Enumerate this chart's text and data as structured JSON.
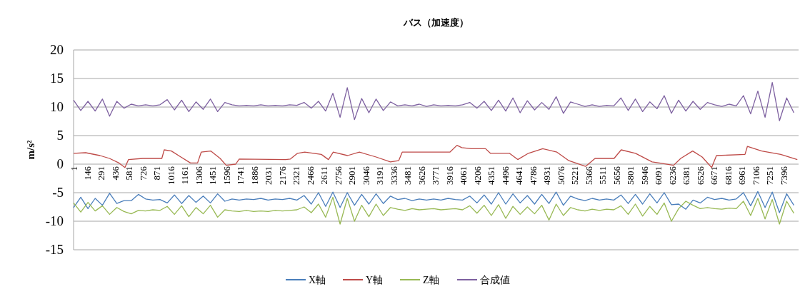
{
  "chart_data": {
    "type": "line",
    "title": "バス（加速度）",
    "ylabel": "m/s²",
    "grid": "y",
    "legend": "bottom",
    "xlim": [
      1,
      7550
    ],
    "ylim": [
      -15,
      20
    ],
    "yticks": [
      -15,
      -10,
      -5,
      0,
      5,
      10,
      15,
      20
    ],
    "xticks": [
      1,
      146,
      291,
      436,
      581,
      726,
      871,
      1016,
      1161,
      1306,
      1451,
      1596,
      1741,
      1886,
      2031,
      2176,
      2321,
      2466,
      2611,
      2756,
      2901,
      3046,
      3191,
      3336,
      3481,
      3626,
      3771,
      3916,
      4061,
      4206,
      4351,
      4496,
      4641,
      4786,
      4931,
      5076,
      5221,
      5366,
      5511,
      5656,
      5801,
      5946,
      6091,
      6236,
      6381,
      6526,
      6671,
      6816,
      6961,
      7106,
      7251,
      7396
    ],
    "x": [
      1,
      76,
      151,
      226,
      301,
      376,
      451,
      526,
      601,
      676,
      751,
      826,
      901,
      976,
      1051,
      1126,
      1201,
      1276,
      1351,
      1426,
      1501,
      1576,
      1651,
      1726,
      1801,
      1876,
      1951,
      2026,
      2101,
      2176,
      2251,
      2326,
      2401,
      2476,
      2551,
      2626,
      2701,
      2776,
      2851,
      2926,
      3001,
      3076,
      3151,
      3226,
      3301,
      3376,
      3451,
      3526,
      3601,
      3676,
      3751,
      3826,
      3901,
      3976,
      4051,
      4126,
      4201,
      4276,
      4351,
      4426,
      4501,
      4576,
      4651,
      4726,
      4801,
      4876,
      4951,
      5026,
      5101,
      5176,
      5251,
      5326,
      5401,
      5476,
      5551,
      5626,
      5701,
      5776,
      5851,
      5926,
      6001,
      6076,
      6151,
      6226,
      6301,
      6376,
      6451,
      6526,
      6601,
      6676,
      6751,
      6826,
      6901,
      6976,
      7051,
      7126,
      7201,
      7276,
      7351,
      7426,
      7501
    ],
    "series": [
      {
        "name": "X軸",
        "color": "#4a7ebb",
        "values": [
          -7.6,
          -5.8,
          -7.8,
          -6.0,
          -7.2,
          -5.1,
          -6.9,
          -6.4,
          -6.4,
          -5.3,
          -6.1,
          -6.3,
          -6.2,
          -6.8,
          -5.4,
          -6.9,
          -5.5,
          -6.7,
          -5.6,
          -6.8,
          -5.2,
          -6.5,
          -6.1,
          -6.3,
          -6.1,
          -6.2,
          -6.0,
          -6.3,
          -6.1,
          -6.2,
          -6.0,
          -6.3,
          -5.5,
          -7.0,
          -5.0,
          -7.4,
          -4.9,
          -7.6,
          -5.0,
          -7.2,
          -5.3,
          -7.0,
          -5.2,
          -6.9,
          -5.6,
          -6.2,
          -6.0,
          -6.4,
          -6.1,
          -6.3,
          -6.1,
          -6.3,
          -6.0,
          -6.2,
          -6.3,
          -5.6,
          -6.8,
          -5.4,
          -7.0,
          -5.0,
          -7.0,
          -5.2,
          -6.8,
          -5.5,
          -7.0,
          -5.3,
          -6.9,
          -4.9,
          -7.2,
          -5.6,
          -6.1,
          -6.4,
          -6.0,
          -6.3,
          -6.1,
          -6.3,
          -5.4,
          -6.9,
          -5.3,
          -7.0,
          -5.2,
          -6.8,
          -5.0,
          -7.1,
          -7.0,
          -7.9,
          -6.3,
          -6.8,
          -5.8,
          -6.2,
          -6.0,
          -6.3,
          -6.1,
          -5.0,
          -7.3,
          -4.8,
          -7.6,
          -4.9,
          -8.5,
          -5.2,
          -7.2
        ]
      },
      {
        "name": "Y軸",
        "color": "#be4b48",
        "x": [
          1,
          127,
          276,
          375,
          474,
          536,
          573,
          722,
          920,
          945,
          1020,
          1118,
          1218,
          1292,
          1330,
          1429,
          1527,
          1590,
          1689,
          1726,
          2209,
          2259,
          2333,
          2408,
          2581,
          2655,
          2705,
          2854,
          2977,
          3151,
          3300,
          3386,
          3423,
          3919,
          3993,
          4043,
          4142,
          4291,
          4341,
          4539,
          4626,
          4737,
          4886,
          5034,
          5159,
          5332,
          5431,
          5629,
          5703,
          5852,
          6025,
          6100,
          6249,
          6323,
          6447,
          6546,
          6645,
          6695,
          6992,
          7017,
          7166,
          7364,
          7537
        ],
        "values": [
          1.9,
          2.0,
          1.5,
          1.0,
          0.2,
          -0.6,
          0.8,
          1.0,
          1.0,
          2.5,
          2.3,
          1.25,
          0.2,
          0.2,
          2.1,
          2.3,
          1.0,
          -0.2,
          0,
          0.9,
          0.8,
          0.9,
          1.9,
          2.1,
          1.7,
          0.8,
          2.1,
          1.5,
          2.1,
          1.25,
          0.4,
          0.6,
          2.1,
          2.1,
          3.3,
          2.9,
          2.7,
          2.7,
          1.9,
          1.9,
          0.8,
          1.9,
          2.7,
          2.1,
          0.6,
          -0.4,
          1.0,
          1.0,
          2.5,
          1.9,
          0.4,
          0.2,
          -0.2,
          1.0,
          2.3,
          1.25,
          -0.6,
          1.5,
          1.7,
          3.1,
          2.3,
          1.7,
          0.8
        ]
      },
      {
        "name": "Z軸",
        "color": "#98b954",
        "values": [
          -6.8,
          -8.4,
          -6.7,
          -8.2,
          -7.3,
          -8.8,
          -7.6,
          -8.3,
          -8.7,
          -8.1,
          -8.2,
          -8.0,
          -8.1,
          -7.4,
          -8.8,
          -7.3,
          -9.2,
          -7.6,
          -8.7,
          -7.2,
          -9.3,
          -8.0,
          -8.2,
          -8.3,
          -8.1,
          -8.3,
          -8.2,
          -8.3,
          -8.1,
          -8.2,
          -8.1,
          -8.0,
          -7.5,
          -8.5,
          -7.0,
          -9.3,
          -5.8,
          -10.5,
          -6.0,
          -10.0,
          -7.2,
          -9.2,
          -7.0,
          -9.0,
          -7.6,
          -7.9,
          -8.1,
          -7.8,
          -8.0,
          -7.9,
          -7.8,
          -8.0,
          -7.9,
          -7.8,
          -8.0,
          -7.3,
          -8.6,
          -7.2,
          -9.0,
          -7.1,
          -9.5,
          -7.4,
          -8.8,
          -7.5,
          -8.7,
          -7.2,
          -9.8,
          -7.0,
          -9.0,
          -7.6,
          -8.0,
          -8.2,
          -7.9,
          -8.1,
          -7.9,
          -8.0,
          -7.3,
          -8.8,
          -7.0,
          -9.1,
          -7.4,
          -8.8,
          -6.8,
          -10.0,
          -7.8,
          -6.5,
          -7.2,
          -7.8,
          -7.6,
          -7.8,
          -7.9,
          -7.7,
          -7.8,
          -6.5,
          -9.0,
          -6.0,
          -9.6,
          -6.2,
          -10.5,
          -6.5,
          -8.6
        ]
      },
      {
        "name": "合成値",
        "color": "#7d60a0",
        "values": [
          11.2,
          9.4,
          11.0,
          9.3,
          11.4,
          8.4,
          11.0,
          9.8,
          10.5,
          10.2,
          10.4,
          10.2,
          10.4,
          11.3,
          9.5,
          11.2,
          9.2,
          10.9,
          9.6,
          11.4,
          9.2,
          10.8,
          10.4,
          10.2,
          10.3,
          10.2,
          10.4,
          10.2,
          10.3,
          10.2,
          10.4,
          10.3,
          10.8,
          9.8,
          11.0,
          9.3,
          12.4,
          8.2,
          13.4,
          7.8,
          11.5,
          9.0,
          11.4,
          9.4,
          10.9,
          10.2,
          10.4,
          10.2,
          10.5,
          10.1,
          10.4,
          10.2,
          10.3,
          10.2,
          10.4,
          10.8,
          9.8,
          11.0,
          9.4,
          11.2,
          9.3,
          11.6,
          9.0,
          11.1,
          9.5,
          10.8,
          9.6,
          11.8,
          8.9,
          10.9,
          10.5,
          10.1,
          10.4,
          10.1,
          10.3,
          10.2,
          11.6,
          9.4,
          11.4,
          9.2,
          10.9,
          9.7,
          12.0,
          8.9,
          11.2,
          9.3,
          11.0,
          9.6,
          10.8,
          10.4,
          10.1,
          10.5,
          10.2,
          12.0,
          8.8,
          12.8,
          8.2,
          14.3,
          7.6,
          11.6,
          9.0
        ]
      }
    ]
  }
}
